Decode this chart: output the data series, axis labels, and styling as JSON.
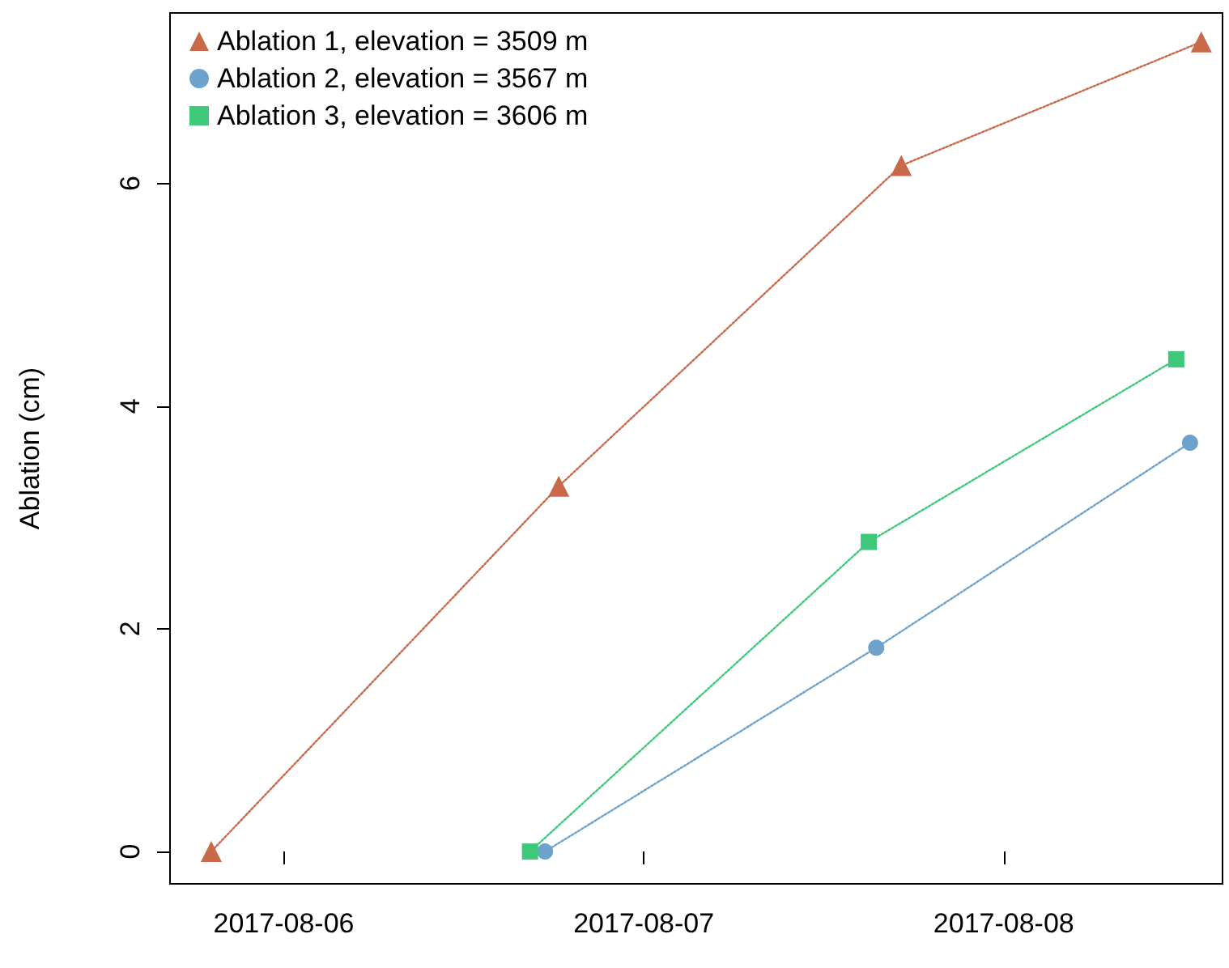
{
  "chart_data": {
    "type": "line",
    "ylabel": "Ablation (cm)",
    "xlim": [
      "2017-08-05T16:25",
      "2017-08-08T14:35"
    ],
    "xticks": [
      "2017-08-06",
      "2017-08-07",
      "2017-08-08"
    ],
    "ylim": [
      -0.29,
      7.53
    ],
    "yticks": [
      0,
      2,
      4,
      6
    ],
    "grid": false,
    "legend": "top left",
    "line_style": "dotted",
    "series": [
      {
        "name": "Ablation 1, elevation = 3509 m",
        "color": "#c8694a",
        "marker": "triangle",
        "x": [
          "2017-08-05T19:10",
          "2017-08-06T18:20",
          "2017-08-07T17:10",
          "2017-08-08T13:10"
        ],
        "values": [
          0,
          3.28,
          6.16,
          7.27
        ]
      },
      {
        "name": "Ablation 2, elevation = 3567 m",
        "color": "#6ca2cc",
        "marker": "circle",
        "x": [
          "2017-08-06T17:25",
          "2017-08-07T15:30",
          "2017-08-08T12:25"
        ],
        "values": [
          0,
          1.83,
          3.67
        ]
      },
      {
        "name": "Ablation 3, elevation = 3606 m",
        "color": "#3ec97a",
        "marker": "square",
        "x": [
          "2017-08-06T16:25",
          "2017-08-07T15:00",
          "2017-08-08T11:30"
        ],
        "values": [
          0,
          2.78,
          4.42
        ]
      }
    ]
  }
}
